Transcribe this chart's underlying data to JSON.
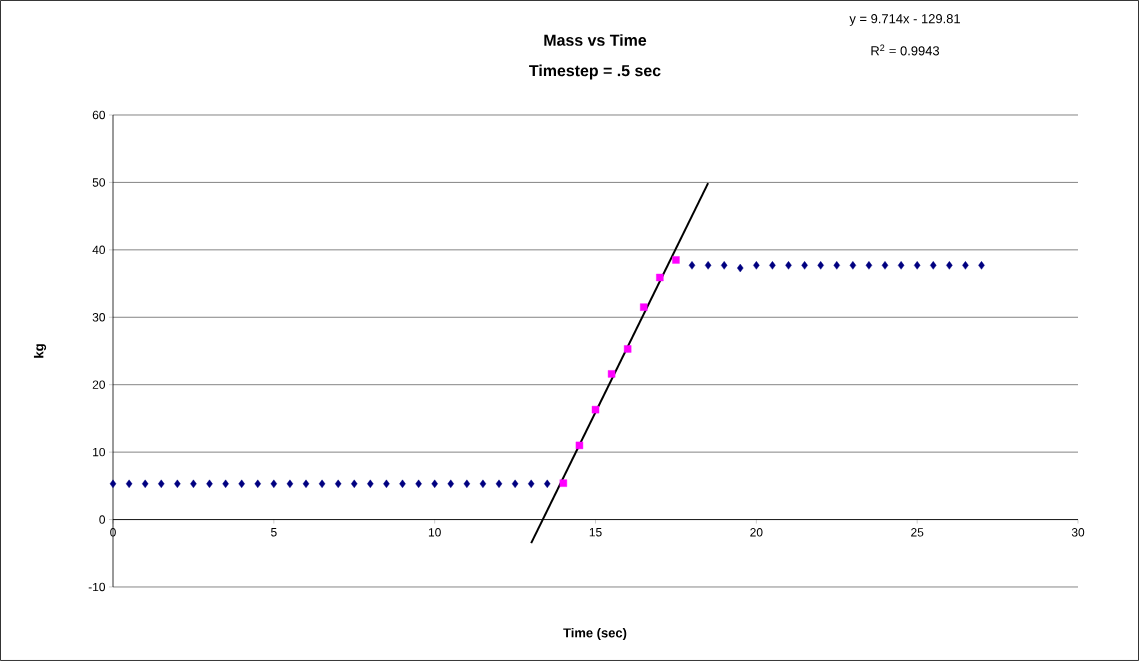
{
  "chart_data": {
    "type": "scatter",
    "title": "Mass vs Time",
    "subtitle": "Timestep = .5 sec",
    "xlabel": "Time (sec)",
    "ylabel": "kg",
    "annotations": [
      "y = 9.714x - 129.81",
      "R$^{2}$ = 0.9943"
    ],
    "xlim": [
      0,
      30
    ],
    "xticks": [
      0,
      5,
      10,
      15,
      20,
      25,
      30
    ],
    "ylim": [
      -10,
      60
    ],
    "yticks": [
      -10,
      0,
      10,
      20,
      30,
      40,
      50,
      60
    ],
    "grid": "y",
    "series": [
      {
        "marker": "diamond",
        "color": "#000080",
        "x": [
          0,
          0.5,
          1,
          1.5,
          2,
          2.5,
          3,
          3.5,
          4,
          4.5,
          5,
          5.5,
          6,
          6.5,
          7,
          7.5,
          8,
          8.5,
          9,
          9.5,
          10,
          10.5,
          11,
          11.5,
          12,
          12.5,
          13,
          13.5,
          14,
          14.5,
          15,
          15.5,
          16,
          16.5,
          17,
          17.5,
          18,
          18.5,
          19,
          19.5,
          20,
          20.5,
          21,
          21.5,
          22,
          22.5,
          23,
          23.5,
          24,
          24.5,
          25,
          25.5,
          26,
          26.5,
          27
        ],
        "values": [
          5.3,
          5.3,
          5.3,
          5.3,
          5.3,
          5.3,
          5.3,
          5.3,
          5.3,
          5.3,
          5.3,
          5.3,
          5.3,
          5.3,
          5.3,
          5.3,
          5.3,
          5.3,
          5.3,
          5.3,
          5.3,
          5.3,
          5.3,
          5.3,
          5.3,
          5.3,
          5.3,
          5.3,
          null,
          null,
          null,
          null,
          null,
          null,
          null,
          null,
          37.7,
          37.7,
          37.7,
          37.3,
          37.7,
          37.7,
          37.7,
          37.7,
          37.7,
          37.7,
          37.7,
          37.7,
          37.7,
          37.7,
          37.7,
          37.7,
          37.7,
          37.7,
          37.7
        ]
      },
      {
        "marker": "square",
        "color": "#ff00ff",
        "x": [
          14,
          14.5,
          15,
          15.5,
          16,
          16.5,
          17,
          17.5
        ],
        "values": [
          5.4,
          11.0,
          16.3,
          21.6,
          25.3,
          31.5,
          35.9,
          38.5
        ]
      },
      {
        "type": "line",
        "marker": "none",
        "line_style": "solid",
        "color": "#000000",
        "x": [
          13,
          18.5
        ],
        "values": [
          -3.5,
          49.9
        ]
      }
    ]
  }
}
